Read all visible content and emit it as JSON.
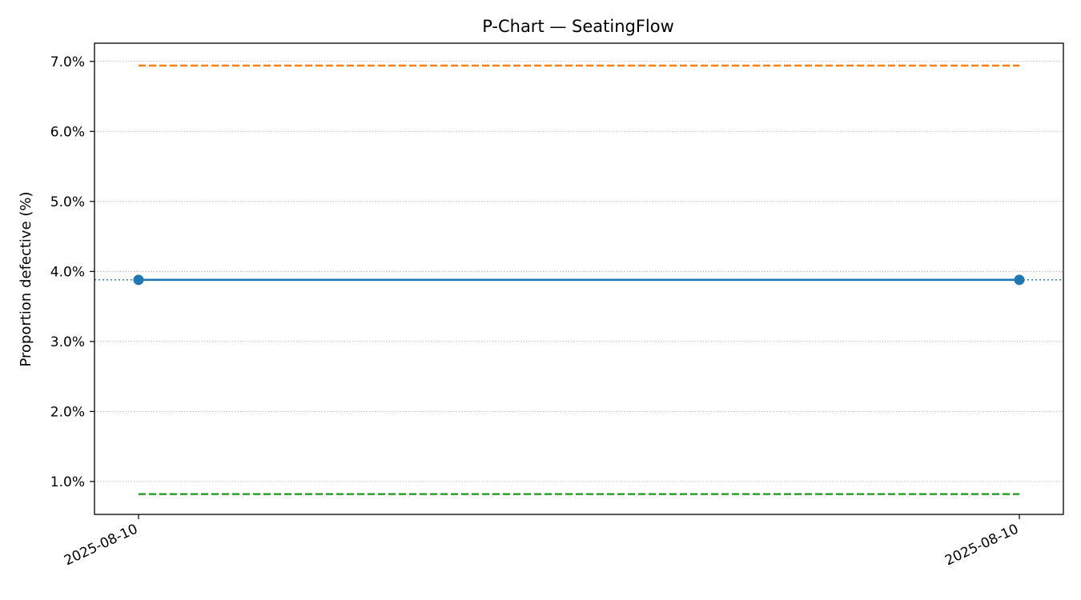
{
  "chart_data": {
    "type": "line",
    "title": "P-Chart — SeatingFlow",
    "xlabel": "",
    "ylabel": "Proportion defective (%)",
    "x": [
      "2025-08-10",
      "2025-08-10"
    ],
    "series": [
      {
        "values": [
          3.88,
          3.88
        ],
        "color": "#1f77b4",
        "style": "solid-with-markers"
      }
    ],
    "reference_lines": [
      {
        "value": 6.94,
        "color": "#ff7f0e",
        "style": "dashed"
      },
      {
        "value": 3.88,
        "color": "#1f77b4",
        "style": "dotted"
      },
      {
        "value": 0.82,
        "color": "#2ca02c",
        "style": "dashed"
      }
    ],
    "y_ticks": [
      "1.0%",
      "2.0%",
      "3.0%",
      "4.0%",
      "5.0%",
      "6.0%",
      "7.0%"
    ],
    "y_tick_values": [
      1,
      2,
      3,
      4,
      5,
      6,
      7
    ],
    "ylim": [
      0.53,
      7.26
    ],
    "grid": "horizontal-dotted",
    "legend": "none"
  }
}
